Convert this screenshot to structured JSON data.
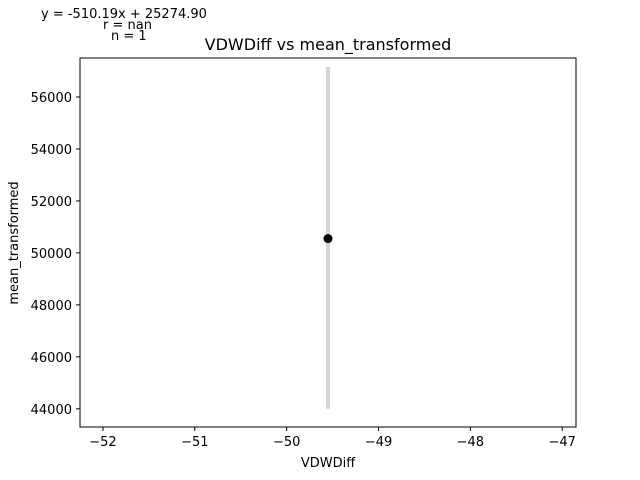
{
  "annotation": {
    "fit_line": "y = -510.19x + 25274.90",
    "r": "r = nan",
    "n": "n = 1"
  },
  "chart_data": {
    "type": "scatter",
    "title": "VDWDiff vs mean_transformed",
    "xlabel": "VDWDiff",
    "ylabel": "mean_transformed",
    "xlim": [
      -52.25,
      -46.85
    ],
    "ylim": [
      43300,
      57500
    ],
    "x_ticks": [
      -52,
      -51,
      -50,
      -49,
      -48,
      -47
    ],
    "x_tick_labels": [
      "−52",
      "−51",
      "−50",
      "−49",
      "−48",
      "−47"
    ],
    "y_ticks": [
      44000,
      46000,
      48000,
      50000,
      52000,
      54000,
      56000
    ],
    "y_tick_labels": [
      "44000",
      "46000",
      "48000",
      "50000",
      "52000",
      "54000",
      "56000"
    ],
    "points": [
      {
        "x": -49.55,
        "y": 50550
      }
    ],
    "error_bars": [
      {
        "x": -49.55,
        "y_low": 44000,
        "y_high": 57150
      }
    ],
    "grid": false,
    "colors": {
      "point": "#000000",
      "error_bar": "#d3d3d3",
      "axes": "#000000"
    }
  }
}
